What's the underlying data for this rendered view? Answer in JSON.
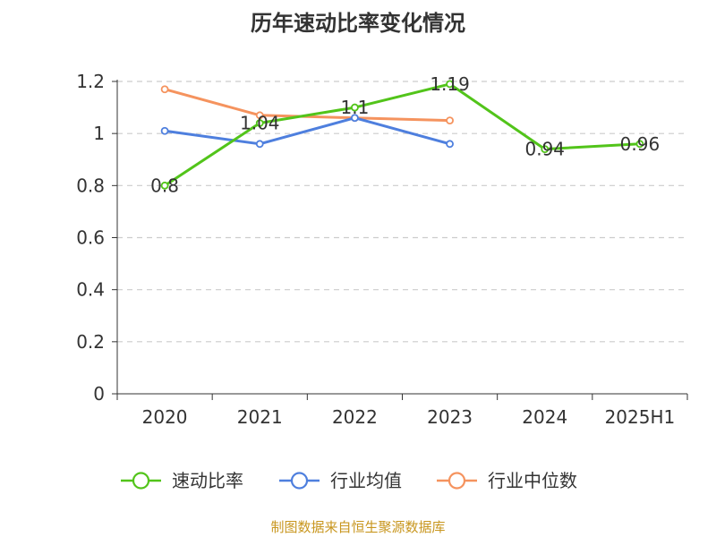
{
  "chart_data": {
    "type": "line",
    "title": "历年速动比率变化情况",
    "categories": [
      "2020",
      "2021",
      "2022",
      "2023",
      "2024",
      "2025H1"
    ],
    "ylim": [
      0,
      1.2
    ],
    "yticks": [
      "0",
      "0.2",
      "0.4",
      "0.6",
      "0.8",
      "1",
      "1.2"
    ],
    "grid": true,
    "legend_position": "bottom",
    "series": [
      {
        "name": "速动比率",
        "color": "#52c41a",
        "values": [
          0.8,
          1.04,
          1.1,
          1.19,
          0.94,
          0.96
        ],
        "labels": [
          "0.8",
          "1.04",
          "1.1",
          "1.19",
          "0.94",
          "0.96"
        ]
      },
      {
        "name": "行业均值",
        "color": "#4e7fde",
        "values": [
          1.01,
          0.96,
          1.06,
          0.96,
          null,
          null
        ]
      },
      {
        "name": "行业中位数",
        "color": "#f5935e",
        "values": [
          1.17,
          1.07,
          1.06,
          1.05,
          null,
          null
        ]
      }
    ]
  },
  "source_note": "制图数据来自恒生聚源数据库"
}
